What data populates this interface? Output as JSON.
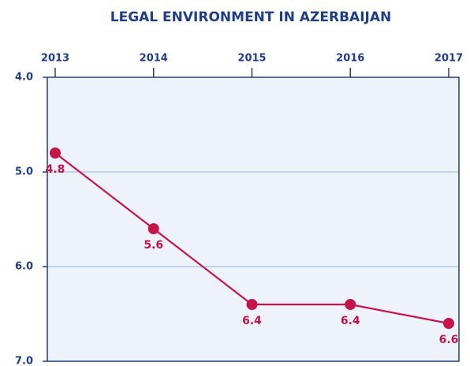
{
  "chart_data": {
    "type": "line",
    "title": "LEGAL ENVIRONMENT IN AZERBAIJAN",
    "categories": [
      "2013",
      "2014",
      "2015",
      "2016",
      "2017"
    ],
    "series": [
      {
        "name": "Legal Environment",
        "color": "#c8134a",
        "values": [
          4.8,
          5.6,
          6.4,
          6.4,
          6.6
        ]
      }
    ],
    "ylim": [
      4,
      7
    ],
    "yticks": [
      {
        "value": 4,
        "label": "4.0"
      },
      {
        "value": 5,
        "label": "5.0"
      },
      {
        "value": 6,
        "label": "6.0"
      },
      {
        "value": 7,
        "label": "7.0"
      }
    ],
    "y_inverted": true,
    "x_axis_position": "top",
    "grid": true
  }
}
